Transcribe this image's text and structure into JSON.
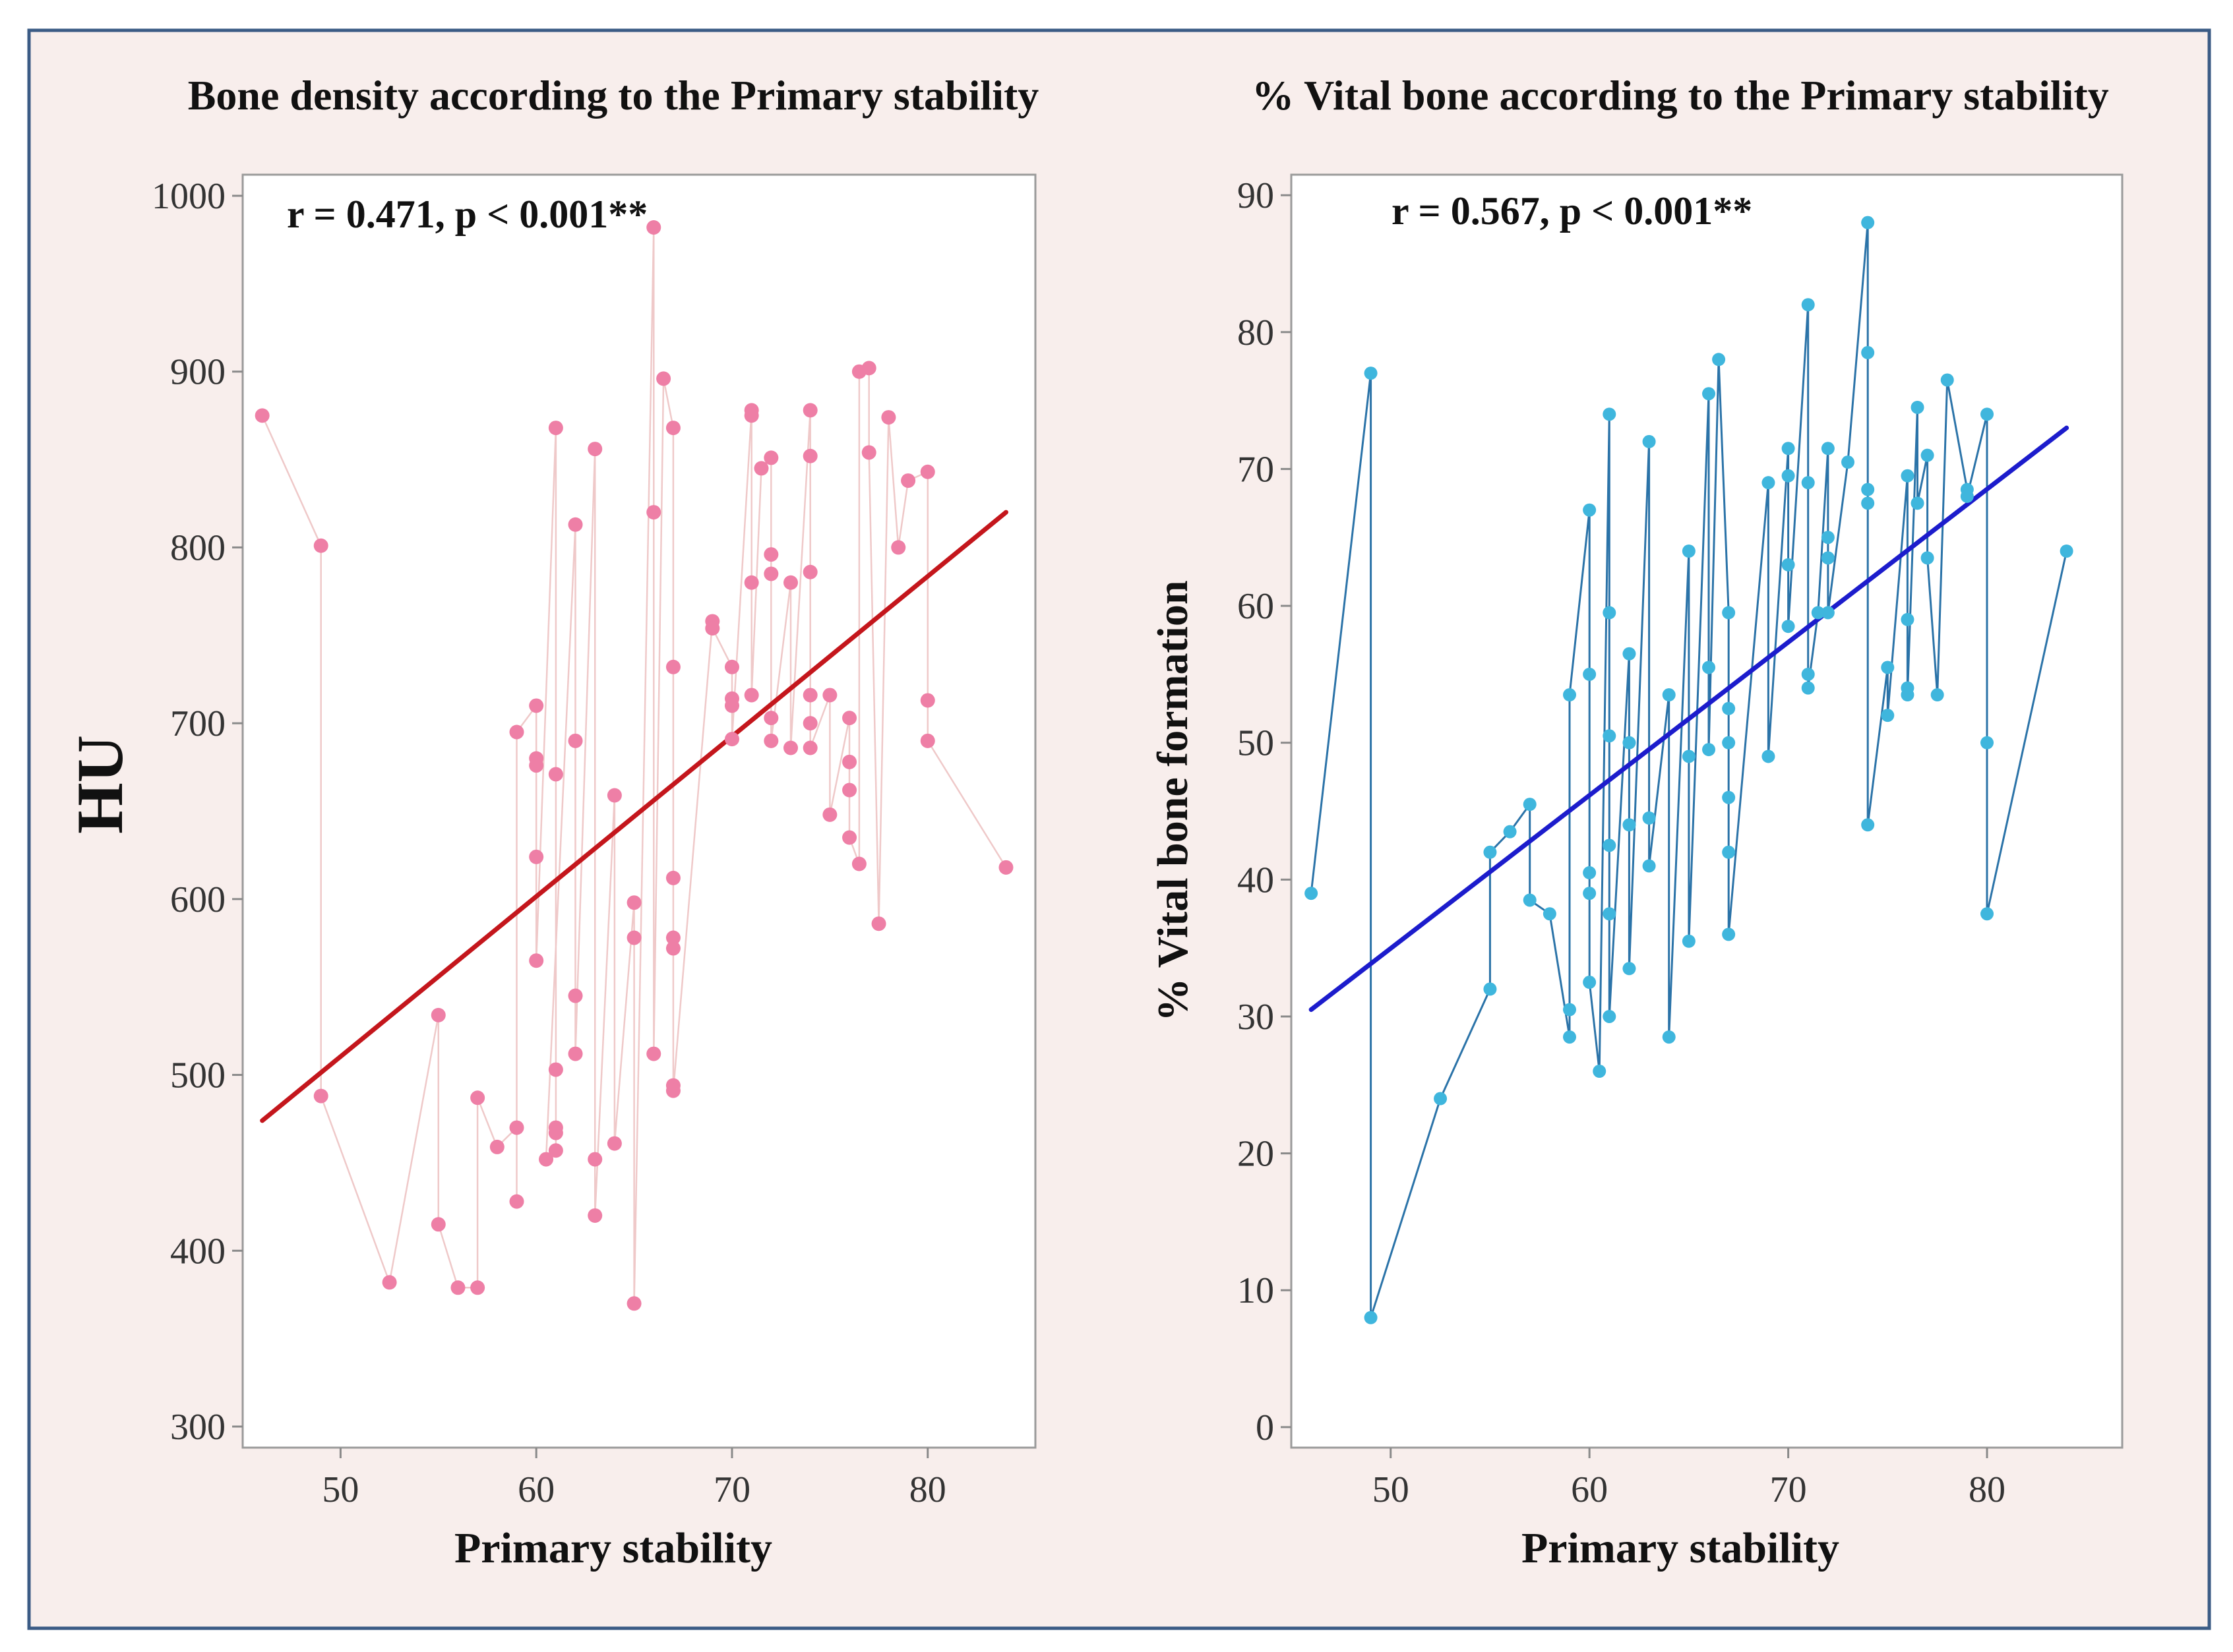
{
  "figure": {
    "background_color": "#f8eeec",
    "border_color": "#3b5b85"
  },
  "chart_data": [
    {
      "type": "scatter",
      "title": "Bone density according to the Primary stability",
      "xlabel": "Primary stability",
      "ylabel": "HU",
      "annotation": "r = 0.471, p < 0.001**",
      "xlim": [
        45,
        85.5
      ],
      "ylim": [
        288,
        1012
      ],
      "xticks": [
        50,
        60,
        70,
        80
      ],
      "yticks": [
        300,
        400,
        500,
        600,
        700,
        800,
        900,
        1000
      ],
      "point_color": "#ee7fa6",
      "connector_color": "#efc9c9",
      "fit_color": "#c4161c",
      "fit_line": {
        "x": [
          46,
          84
        ],
        "y": [
          474,
          820
        ]
      },
      "points": [
        [
          46,
          875
        ],
        [
          49,
          801
        ],
        [
          49,
          488
        ],
        [
          52.5,
          382
        ],
        [
          55,
          534
        ],
        [
          55,
          415
        ],
        [
          56,
          379
        ],
        [
          57,
          379
        ],
        [
          57,
          487
        ],
        [
          58,
          459
        ],
        [
          59,
          470
        ],
        [
          59,
          428
        ],
        [
          59,
          695
        ],
        [
          60,
          710
        ],
        [
          60,
          680
        ],
        [
          60,
          676
        ],
        [
          60,
          624
        ],
        [
          60,
          565
        ],
        [
          61,
          868
        ],
        [
          61,
          671
        ],
        [
          61,
          503
        ],
        [
          61,
          470
        ],
        [
          61,
          467
        ],
        [
          61,
          457
        ],
        [
          60.5,
          452
        ],
        [
          62,
          813
        ],
        [
          62,
          690
        ],
        [
          62,
          545
        ],
        [
          62,
          512
        ],
        [
          63,
          856
        ],
        [
          63,
          452
        ],
        [
          63,
          420
        ],
        [
          64,
          659
        ],
        [
          64,
          461
        ],
        [
          65,
          598
        ],
        [
          65,
          578
        ],
        [
          65,
          370
        ],
        [
          66,
          982
        ],
        [
          66,
          820
        ],
        [
          66,
          512
        ],
        [
          66.5,
          896
        ],
        [
          67,
          868
        ],
        [
          67,
          732
        ],
        [
          67,
          612
        ],
        [
          67,
          578
        ],
        [
          67,
          572
        ],
        [
          67,
          494
        ],
        [
          67,
          491
        ],
        [
          69,
          758
        ],
        [
          69,
          754
        ],
        [
          70,
          732
        ],
        [
          70,
          714
        ],
        [
          70,
          710
        ],
        [
          70,
          691
        ],
        [
          71,
          878
        ],
        [
          71,
          875
        ],
        [
          71,
          780
        ],
        [
          71,
          716
        ],
        [
          71.5,
          845
        ],
        [
          72,
          851
        ],
        [
          72,
          796
        ],
        [
          72,
          785
        ],
        [
          72,
          703
        ],
        [
          72,
          690
        ],
        [
          73,
          780
        ],
        [
          73,
          686
        ],
        [
          74,
          878
        ],
        [
          74,
          852
        ],
        [
          74,
          786
        ],
        [
          74,
          716
        ],
        [
          74,
          700
        ],
        [
          74,
          686
        ],
        [
          75,
          716
        ],
        [
          75,
          648
        ],
        [
          76,
          703
        ],
        [
          76,
          678
        ],
        [
          76,
          662
        ],
        [
          76,
          635
        ],
        [
          76.5,
          620
        ],
        [
          76.5,
          900
        ],
        [
          77,
          902
        ],
        [
          77,
          854
        ],
        [
          77.5,
          586
        ],
        [
          78,
          874
        ],
        [
          78.5,
          800
        ],
        [
          79,
          838
        ],
        [
          80,
          843
        ],
        [
          80,
          713
        ],
        [
          80,
          690
        ],
        [
          84,
          618
        ]
      ]
    },
    {
      "type": "scatter",
      "title": "% Vital bone according to the Primary stability",
      "xlabel": "Primary stability",
      "ylabel": "% Vital bone formation",
      "annotation": "r = 0.567, p < 0.001**",
      "xlim": [
        45,
        86.8
      ],
      "ylim": [
        -1.5,
        91.5
      ],
      "xticks": [
        50,
        60,
        70,
        80
      ],
      "yticks": [
        0,
        10,
        20,
        30,
        40,
        50,
        60,
        70,
        80,
        90
      ],
      "point_color": "#3fb6dd",
      "connector_color": "#2b73a8",
      "fit_color": "#1c1ccc",
      "fit_line": {
        "x": [
          46,
          84
        ],
        "y": [
          30.5,
          73
        ]
      },
      "points": [
        [
          46,
          39
        ],
        [
          49,
          77
        ],
        [
          49,
          8
        ],
        [
          52.5,
          24
        ],
        [
          55,
          32
        ],
        [
          55,
          42
        ],
        [
          56,
          43.5
        ],
        [
          57,
          45.5
        ],
        [
          57,
          38.5
        ],
        [
          58,
          37.5
        ],
        [
          59,
          28.5
        ],
        [
          59,
          30.5
        ],
        [
          59,
          53.5
        ],
        [
          60,
          67
        ],
        [
          60,
          55
        ],
        [
          60,
          40.5
        ],
        [
          60,
          39
        ],
        [
          60,
          32.5
        ],
        [
          60.5,
          26
        ],
        [
          61,
          74
        ],
        [
          61,
          59.5
        ],
        [
          61,
          50.5
        ],
        [
          61,
          42.5
        ],
        [
          61,
          37.5
        ],
        [
          61,
          30
        ],
        [
          62,
          56.5
        ],
        [
          62,
          50
        ],
        [
          62,
          44
        ],
        [
          62,
          33.5
        ],
        [
          63,
          72
        ],
        [
          63,
          44.5
        ],
        [
          63,
          41
        ],
        [
          64,
          53.5
        ],
        [
          64,
          28.5
        ],
        [
          65,
          64
        ],
        [
          65,
          49
        ],
        [
          65,
          35.5
        ],
        [
          66,
          75.5
        ],
        [
          66,
          55.5
        ],
        [
          66,
          49.5
        ],
        [
          66.5,
          78
        ],
        [
          67,
          59.5
        ],
        [
          67,
          52.5
        ],
        [
          67,
          50
        ],
        [
          67,
          46
        ],
        [
          67,
          42
        ],
        [
          67,
          36
        ],
        [
          69,
          69
        ],
        [
          69,
          49
        ],
        [
          70,
          71.5
        ],
        [
          70,
          69.5
        ],
        [
          70,
          63
        ],
        [
          70,
          58.5
        ],
        [
          71,
          82
        ],
        [
          71,
          69
        ],
        [
          71,
          55
        ],
        [
          71,
          54
        ],
        [
          71.5,
          59.5
        ],
        [
          72,
          71.5
        ],
        [
          72,
          65
        ],
        [
          72,
          63.5
        ],
        [
          72,
          59.5
        ],
        [
          73,
          70.5
        ],
        [
          74,
          88
        ],
        [
          74,
          78.5
        ],
        [
          74,
          68.5
        ],
        [
          74,
          67.5
        ],
        [
          74,
          44
        ],
        [
          75,
          55.5
        ],
        [
          75,
          52
        ],
        [
          76,
          69.5
        ],
        [
          76,
          59
        ],
        [
          76,
          54
        ],
        [
          76,
          53.5
        ],
        [
          76.5,
          74.5
        ],
        [
          76.5,
          67.5
        ],
        [
          77,
          71
        ],
        [
          77,
          63.5
        ],
        [
          77.5,
          53.5
        ],
        [
          78,
          76.5
        ],
        [
          79,
          68.5
        ],
        [
          79,
          68
        ],
        [
          80,
          74
        ],
        [
          80,
          50
        ],
        [
          80,
          37.5
        ],
        [
          84,
          64
        ]
      ]
    }
  ]
}
